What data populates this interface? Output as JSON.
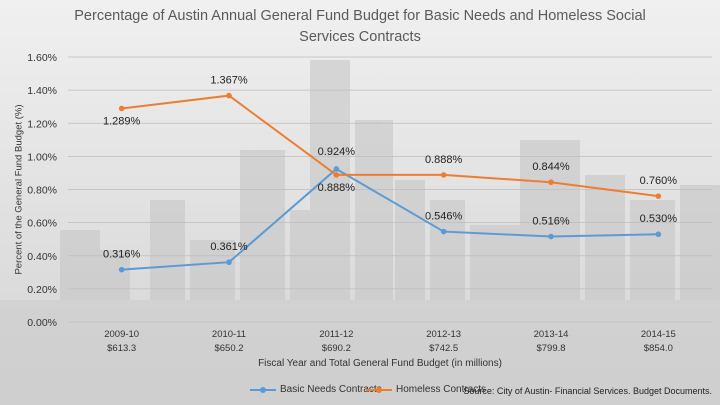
{
  "chart_data": {
    "type": "line",
    "title": "Percentage of Austin Annual General Fund Budget for Basic Needs and Homeless Social Services Contracts",
    "xlabel": "Fiscal Year and Total General Fund Budget (in millions)",
    "ylabel": "Percent of the General Fund Budget (%)",
    "source": "Source: City of Austin- Financial Services. Budget Documents.",
    "categories": [
      {
        "year": "2009-10",
        "budget": "$613.3"
      },
      {
        "year": "2010-11",
        "budget": "$650.2"
      },
      {
        "year": "2011-12",
        "budget": "$690.2"
      },
      {
        "year": "2012-13",
        "budget": "$742.5"
      },
      {
        "year": "2013-14",
        "budget": "$799.8"
      },
      {
        "year": "2014-15",
        "budget": "$854.0"
      }
    ],
    "yticks": [
      "0.00%",
      "0.20%",
      "0.40%",
      "0.60%",
      "0.80%",
      "1.00%",
      "1.20%",
      "1.40%",
      "1.60%"
    ],
    "ylim": [
      0,
      1.6
    ],
    "grid": true,
    "legend_position": "bottom",
    "series": [
      {
        "name": "Basic Needs Contracts",
        "color": "#5b9bd5",
        "values": [
          0.316,
          0.361,
          0.924,
          0.546,
          0.516,
          0.53
        ],
        "labels": [
          "0.316%",
          "0.361%",
          "0.924%",
          "0.546%",
          "0.516%",
          "0.530%"
        ]
      },
      {
        "name": "Homeless Contracts",
        "color": "#ed7d31",
        "values": [
          1.289,
          1.367,
          0.888,
          0.888,
          0.844,
          0.76
        ],
        "labels": [
          "1.289%",
          "1.367%",
          "0.888%",
          "0.888%",
          "0.844%",
          "0.760%"
        ]
      }
    ]
  }
}
